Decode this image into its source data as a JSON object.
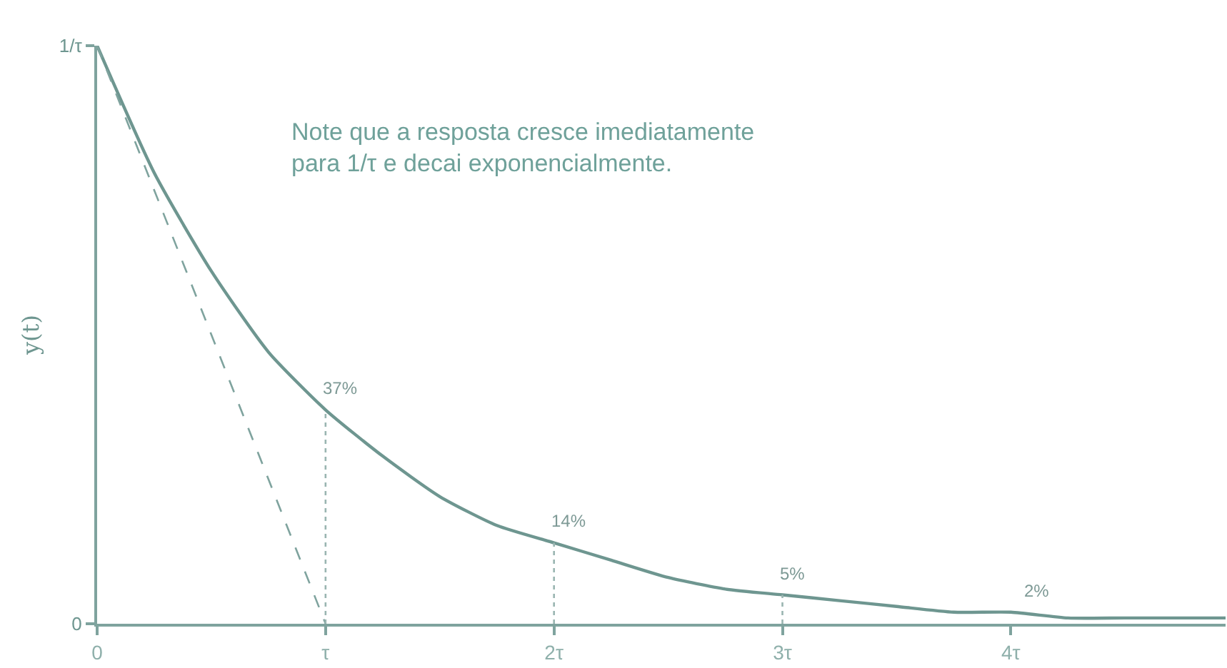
{
  "chart_data": {
    "type": "line",
    "ylabel": "y(t)",
    "xlim": [
      0,
      4.94
    ],
    "ylim": [
      0,
      1
    ],
    "xticks": [
      0,
      {
        "value": 1,
        "label": "τ"
      },
      {
        "value": 2,
        "label": "2τ"
      },
      {
        "value": 3,
        "label": "3τ"
      },
      {
        "value": 4,
        "label": "4τ"
      }
    ],
    "yticks": [
      0,
      {
        "value": 1,
        "label": "1/τ"
      }
    ],
    "marker": "none",
    "series": [
      {
        "color": "#6e9690",
        "line_style": "solid",
        "x": [
          0,
          0.25,
          0.5,
          0.75,
          1,
          1.25,
          1.5,
          1.75,
          2,
          2.25,
          2.5,
          2.75,
          3,
          3.25,
          3.5,
          3.75,
          4,
          4.25,
          4.5,
          4.94
        ],
        "values": [
          1,
          0.78,
          0.61,
          0.47,
          0.37,
          0.29,
          0.22,
          0.17,
          0.14,
          0.11,
          0.08,
          0.06,
          0.05,
          0.04,
          0.03,
          0.02,
          0.02,
          0.01,
          0.01,
          0.01
        ]
      },
      {
        "color": "#7fa39e",
        "line_style": "dashed",
        "x": [
          0,
          1
        ],
        "values": [
          1,
          0
        ]
      },
      {
        "color": "#9ab5b1",
        "line_style": "dotted",
        "x": [
          1,
          1
        ],
        "values": [
          0,
          0.37
        ]
      },
      {
        "color": "#9ab5b1",
        "line_style": "dotted",
        "x": [
          2,
          2
        ],
        "values": [
          0,
          0.14
        ]
      },
      {
        "color": "#9ab5b1",
        "line_style": "dotted",
        "x": [
          3,
          3
        ],
        "values": [
          0,
          0.05
        ]
      }
    ],
    "annotations": [
      "Note que a resposta cresce imediatamente\npara 1/τ e decai exponencialmente.",
      {
        "text": "37%",
        "x": 1,
        "y": 0.37
      },
      {
        "text": "14%",
        "x": 2,
        "y": 0.14
      },
      {
        "text": "5%",
        "x": 3,
        "y": 0.05
      },
      {
        "text": "2%",
        "x": 4.07,
        "y": 0.02
      }
    ]
  }
}
